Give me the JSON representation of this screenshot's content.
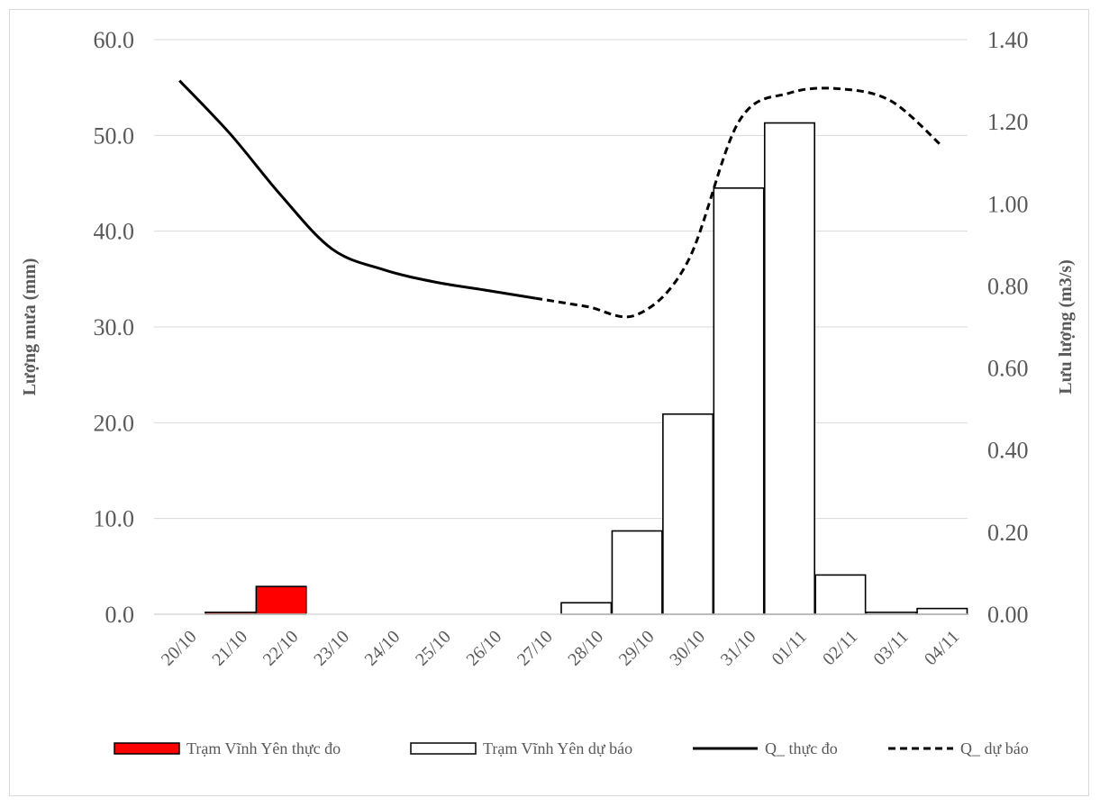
{
  "chart_data": {
    "type": "bar",
    "categories": [
      "20/10",
      "21/10",
      "22/10",
      "23/10",
      "24/10",
      "25/10",
      "26/10",
      "27/10",
      "28/10",
      "29/10",
      "30/10",
      "31/10",
      "01/11",
      "02/11",
      "03/11",
      "04/11"
    ],
    "series": [
      {
        "name": "Trạm Vĩnh Yên thực đo",
        "type": "bar",
        "axis": "left",
        "color": "#ff0000",
        "values": [
          null,
          0.2,
          2.9,
          null,
          null,
          null,
          null,
          null,
          null,
          null,
          null,
          null,
          null,
          null,
          null,
          null
        ]
      },
      {
        "name": "Trạm Vĩnh Yên dự báo",
        "type": "bar",
        "axis": "left",
        "color": "#ffffff",
        "values": [
          null,
          null,
          null,
          null,
          null,
          null,
          null,
          null,
          1.2,
          8.7,
          20.9,
          44.5,
          51.3,
          4.1,
          0.2,
          0.6
        ]
      },
      {
        "name": "Q_ thực đo",
        "type": "line",
        "style": "solid",
        "axis": "right",
        "color": "#000000",
        "values": [
          1.3,
          1.17,
          1.02,
          0.89,
          0.84,
          0.81,
          0.79,
          0.77,
          null,
          null,
          null,
          null,
          null,
          null,
          null,
          null
        ]
      },
      {
        "name": "Q_ dự báo",
        "type": "line",
        "style": "dashed",
        "axis": "right",
        "color": "#000000",
        "values": [
          null,
          null,
          null,
          null,
          null,
          null,
          null,
          0.77,
          0.75,
          0.73,
          0.86,
          1.2,
          1.27,
          1.28,
          1.25,
          1.14
        ]
      }
    ],
    "y_left": {
      "label": "Lượng mưa (mm)",
      "range": [
        0,
        60
      ],
      "ticks": [
        "0.0",
        "10.0",
        "20.0",
        "30.0",
        "40.0",
        "50.0",
        "60.0"
      ]
    },
    "y_right": {
      "label": "Lưu lượng (m3/s)",
      "range": [
        0,
        1.4
      ],
      "ticks": [
        "0.00",
        "0.20",
        "0.40",
        "0.60",
        "0.80",
        "1.00",
        "1.20",
        "1.40"
      ]
    },
    "grid": true,
    "legend_position": "bottom",
    "legend": [
      "Trạm Vĩnh Yên thực đo",
      "Trạm Vĩnh Yên dự báo",
      "Q_ thực đo",
      "Q_ dự báo"
    ]
  }
}
